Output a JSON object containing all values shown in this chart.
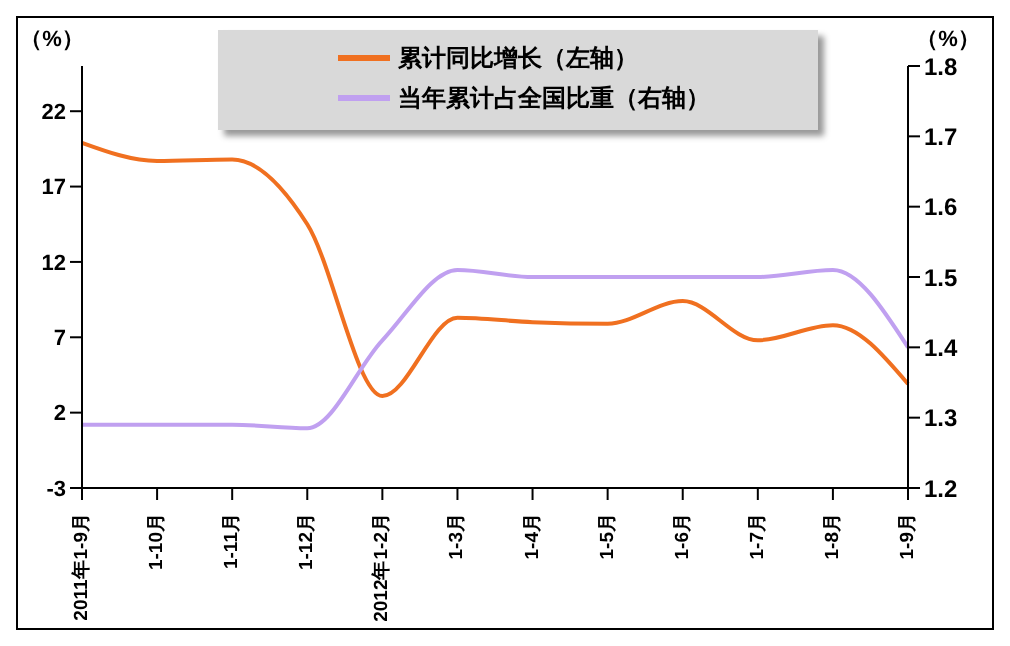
{
  "chart_data": {
    "type": "line",
    "ylabel": "（%）",
    "y2label": "（%）",
    "categories": [
      "2011年1-9月",
      "1-10月",
      "1-11月",
      "1-12月",
      "2012年1-2月",
      "1-3月",
      "1-4月",
      "1-5月",
      "1-6月",
      "1-7月",
      "1-8月",
      "1-9月"
    ],
    "series": [
      {
        "name": "累计同比增长（左轴）",
        "color": "#f07020",
        "values": [
          19.9,
          18.7,
          18.8,
          14.5,
          3.1,
          8.3,
          8.0,
          7.9,
          9.4,
          6.8,
          7.8,
          3.9
        ]
      },
      {
        "name": "当年累计占全国比重（右轴）",
        "color": "#c0a0f0",
        "axis": "y2",
        "values": [
          1.29,
          1.29,
          1.29,
          1.285,
          1.41,
          1.51,
          1.5,
          1.5,
          1.5,
          1.5,
          1.51,
          1.4
        ]
      }
    ],
    "ylim": [
      -3,
      25
    ],
    "yticks": [
      -3,
      2,
      7,
      12,
      17,
      22
    ],
    "y2lim": [
      1.2,
      1.8
    ],
    "y2ticks": [
      {
        "value": 1.2,
        "label": "1.2"
      },
      {
        "value": 1.3,
        "label": "1.3"
      },
      {
        "value": 1.4,
        "label": "1.4"
      },
      {
        "value": 1.5,
        "label": "1.5"
      },
      {
        "value": 1.6,
        "label": "1.6"
      },
      {
        "value": 1.7,
        "label": "1.7"
      },
      {
        "value": 1.8,
        "label": "1.8"
      }
    ],
    "grid": false,
    "legend": "top",
    "marker": "none",
    "line_style": "solid"
  }
}
